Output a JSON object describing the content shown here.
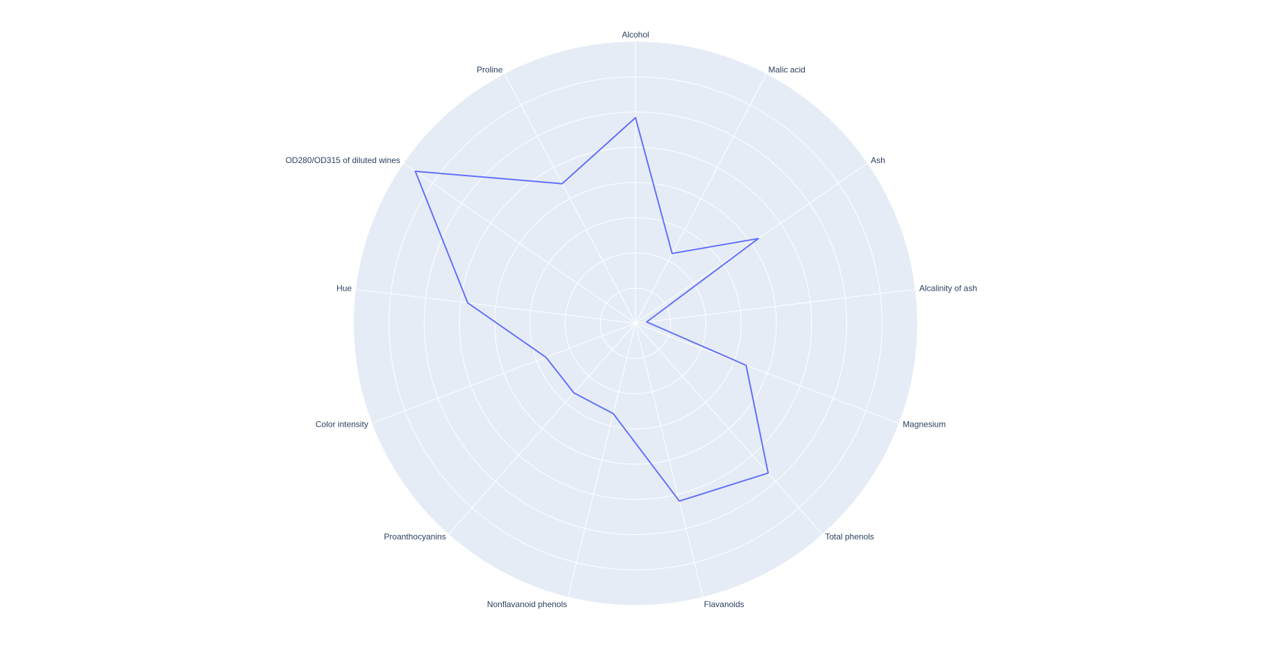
{
  "chart_data": {
    "type": "radar",
    "title": "",
    "categories": [
      "Alcohol",
      "Malic acid",
      "Ash",
      "Alcalinity of ash",
      "Magnesium",
      "Total phenols",
      "Flavanoids",
      "Nonflavanoid phenols",
      "Proanthocyanins",
      "Color intensity",
      "Hue",
      "OD280/OD315 of diluted wines",
      "Proline"
    ],
    "series": [
      {
        "values": [
          0.73,
          0.28,
          0.53,
          0.04,
          0.42,
          0.71,
          0.65,
          0.33,
          0.33,
          0.34,
          0.6,
          0.95,
          0.56
        ],
        "color": "#636efa"
      }
    ],
    "radial_range": [
      0,
      1
    ],
    "grid": true,
    "grid_ring_count": 8,
    "background_color": "#e5ecf6",
    "grid_color": "#ffffff",
    "label_color": "#2a3f5f",
    "legend": "none"
  }
}
